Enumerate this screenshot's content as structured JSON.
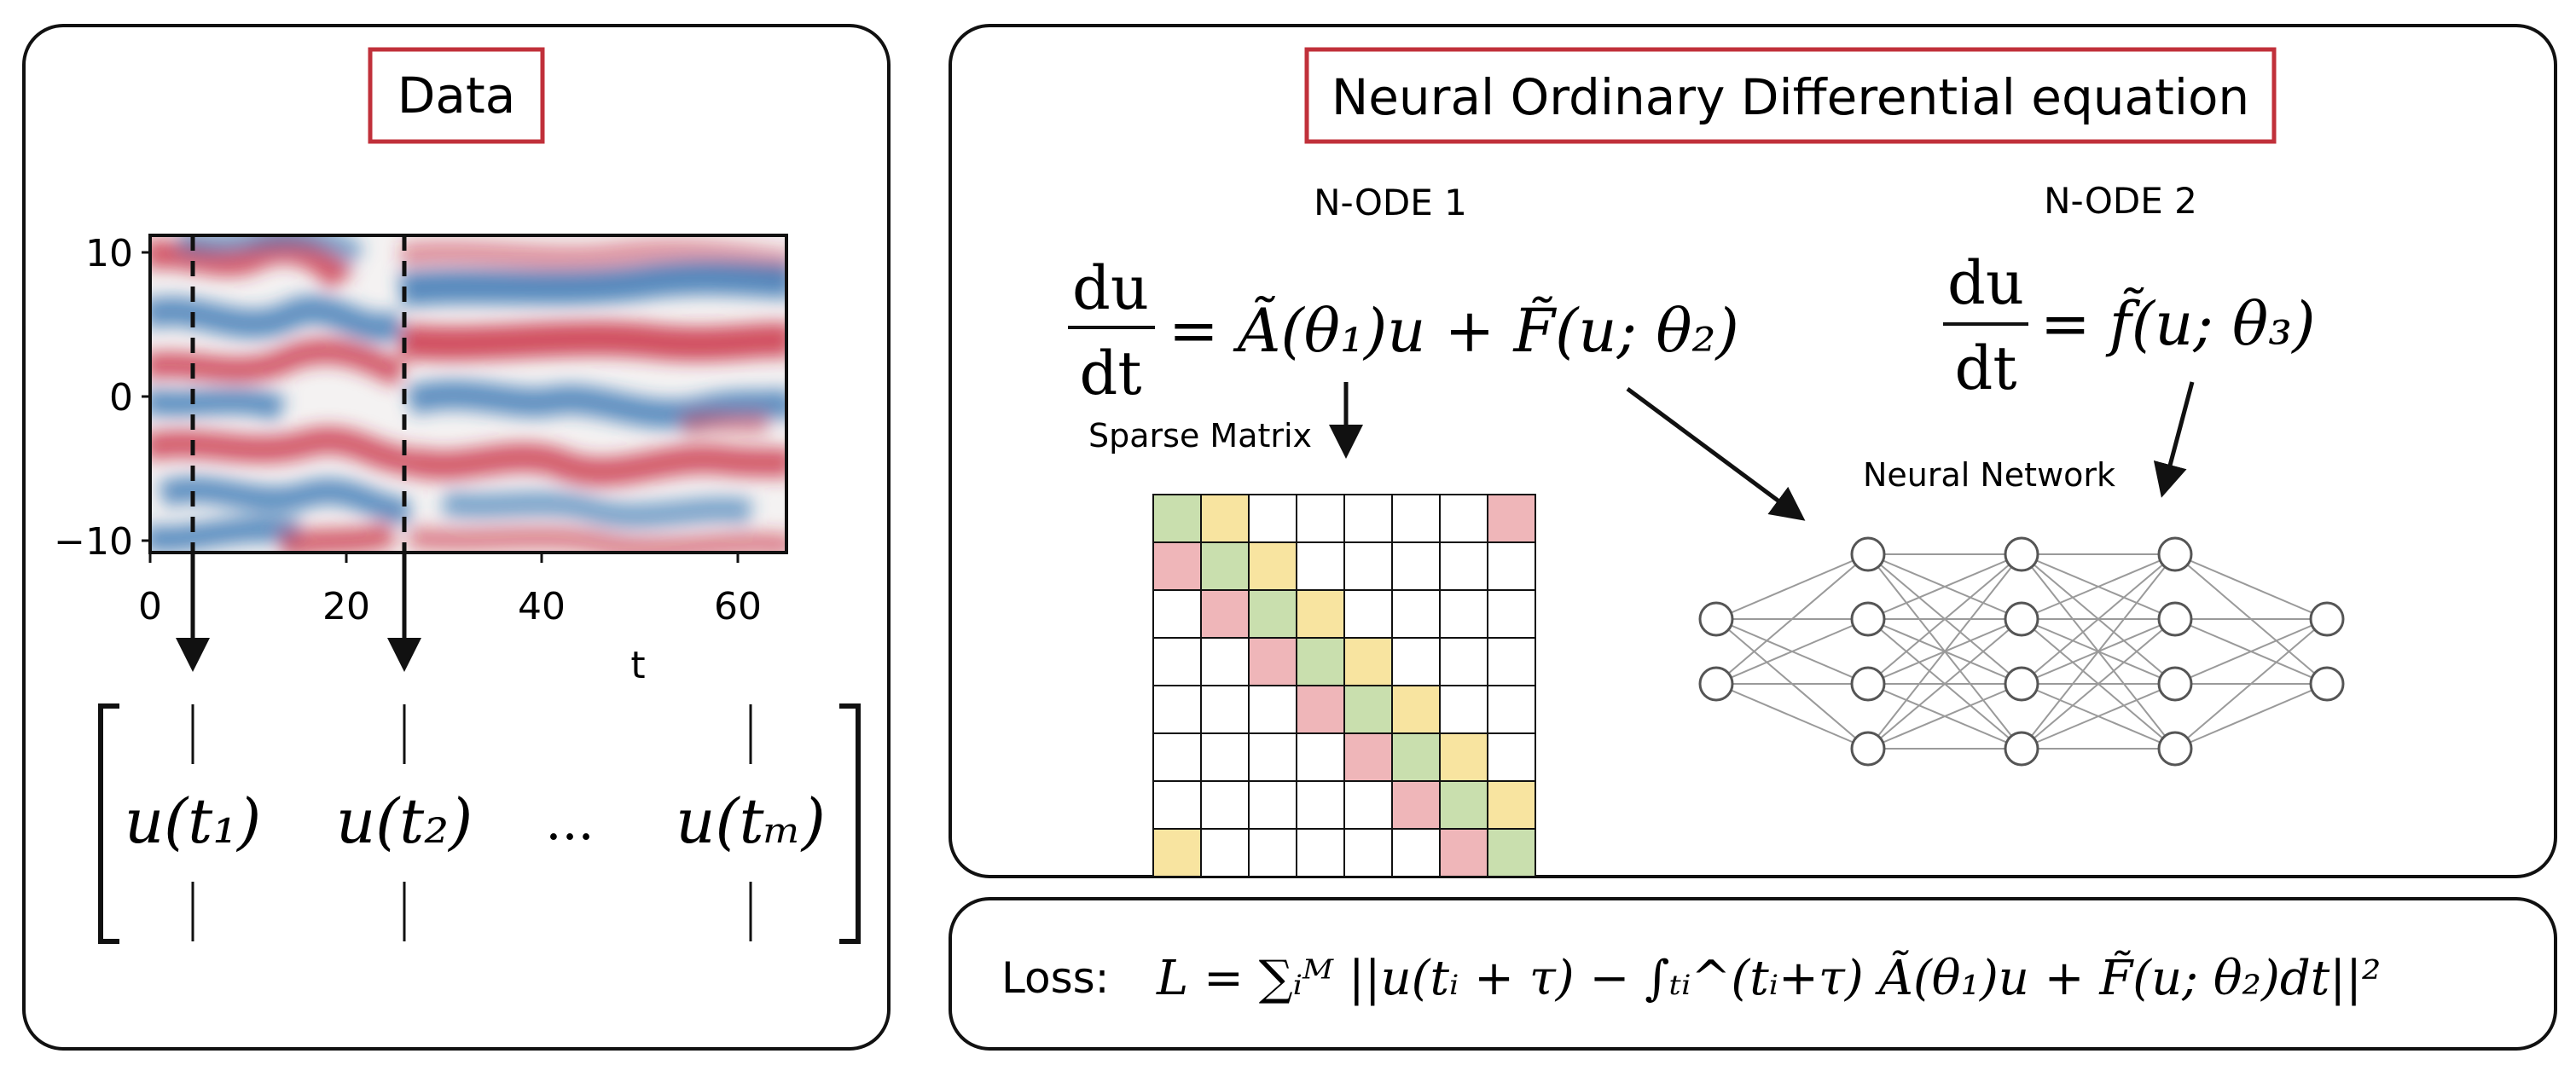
{
  "data_panel": {
    "title": "Data",
    "heatmap": {
      "y_ticks": [
        "10",
        "0",
        "−10"
      ],
      "x_ticks": [
        "0",
        "20",
        "40",
        "60"
      ],
      "x_label": "t",
      "x_range": [
        0,
        65
      ],
      "y_range": [
        -11,
        11
      ],
      "colormap": [
        "#2f6fb0",
        "#f7f7f7",
        "#c8283c"
      ],
      "marked_times": [
        "t1",
        "t2"
      ]
    },
    "matrix": {
      "col1": "u(t₁)",
      "col2": "u(t₂)",
      "ellipsis": "...",
      "col3": "u(tₘ)"
    }
  },
  "node_panel": {
    "title": "Neural Ordinary Differential equation",
    "node1": {
      "label": "N-ODE 1",
      "lhs_num": "du",
      "lhs_den": "dt",
      "rhs": "= Ã(θ₁)u + F̃(u; θ₂)",
      "sparse_label": "Sparse Matrix"
    },
    "node2": {
      "label": "N-ODE 2",
      "lhs_num": "du",
      "lhs_den": "dt",
      "rhs": "= f̃(u; θ₃)"
    },
    "network_label": "Neural Network",
    "sparse_matrix": {
      "size": 8,
      "colors": {
        "diag": "#c9dfae",
        "upper": "#f8e4a0",
        "lower": "#efb6b9",
        "empty": "#ffffff"
      },
      "grid": [
        [
          "g",
          "y",
          "w",
          "w",
          "w",
          "w",
          "w",
          "r"
        ],
        [
          "r",
          "g",
          "y",
          "w",
          "w",
          "w",
          "w",
          "w"
        ],
        [
          "w",
          "r",
          "g",
          "y",
          "w",
          "w",
          "w",
          "w"
        ],
        [
          "w",
          "w",
          "r",
          "g",
          "y",
          "w",
          "w",
          "w"
        ],
        [
          "w",
          "w",
          "w",
          "r",
          "g",
          "y",
          "w",
          "w"
        ],
        [
          "w",
          "w",
          "w",
          "w",
          "r",
          "g",
          "y",
          "w"
        ],
        [
          "w",
          "w",
          "w",
          "w",
          "w",
          "r",
          "g",
          "y"
        ],
        [
          "y",
          "w",
          "w",
          "w",
          "w",
          "w",
          "r",
          "g"
        ]
      ]
    },
    "network_layers": [
      2,
      4,
      4,
      4,
      2
    ]
  },
  "loss_panel": {
    "label": "Loss:",
    "formula": "L = ∑ᵢᴹ ||u(tᵢ + τ) − ∫ₜᵢ^(tᵢ+τ) Ã(θ₁)u + F̃(u; θ₂)dt||²"
  },
  "colors": {
    "frame": "#111111",
    "title_box": "#c0303a"
  }
}
